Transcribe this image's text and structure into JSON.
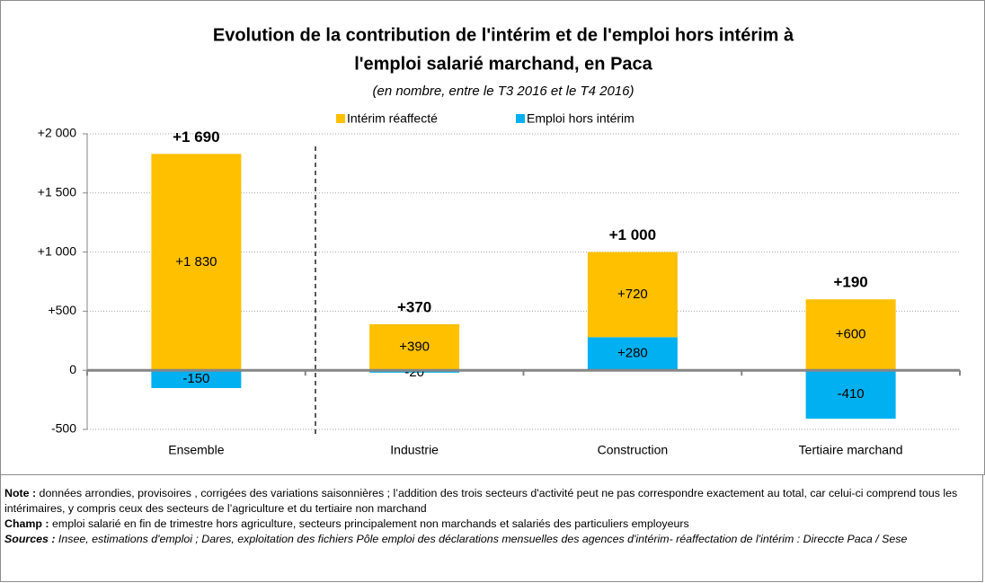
{
  "chart_data": {
    "type": "stacked_bar",
    "title": [
      "Evolution de la contribution de l'intérim et de l'emploi hors intérim à",
      "l'emploi salarié marchand, en Paca"
    ],
    "subtitle": "(en nombre, entre le T3 2016 et le T4 2016)",
    "categories": [
      "Ensemble",
      "Industrie",
      "Construction",
      "Tertiaire marchand"
    ],
    "series": [
      {
        "name": "Intérim réaffecté",
        "color": "#ffc000",
        "values": [
          1830,
          390,
          720,
          600
        ],
        "value_labels": [
          "+1 830",
          "+390",
          "+720",
          "+600"
        ]
      },
      {
        "name": "Emploi hors intérim",
        "color": "#00b0f0",
        "values": [
          -150,
          -20,
          280,
          -410
        ],
        "value_labels": [
          "-150",
          "-20",
          "+280",
          "-410"
        ]
      }
    ],
    "totals": {
      "values": [
        1690,
        370,
        1000,
        190
      ],
      "value_labels": [
        "+1 690",
        "+370",
        "+1 000",
        "+190"
      ]
    },
    "ylim": [
      -500,
      2000
    ],
    "yticks": [
      -500,
      0,
      {
        "value": 500,
        "label": "+500"
      },
      {
        "value": 1000,
        "label": "+1 000"
      },
      {
        "value": 1500,
        "label": "+1 500"
      },
      {
        "value": 2000,
        "label": "+2 000"
      }
    ],
    "grid": true,
    "legend": "top"
  },
  "notes": [
    {
      "label": "Note :",
      "text": " données  arrondies, provisoires , corrigées des variations saisonnières ; l’addition des  trois secteurs d'activité peut ne pas correspondre exactement au total, car celui-ci comprend tous les intérimaires, y compris ceux des secteurs de l’agriculture et du tertiaire non marchand"
    },
    {
      "label": "Champ :",
      "text": " emploi salarié en fin de trimestre hors agriculture, secteurs principalement non marchands et salariés des particuliers employeurs"
    },
    {
      "label": "Sources :",
      "text": " Insee, estimations d'emploi ; Dares, exploitation des fichiers Pôle emploi des déclarations mensuelles des agences d'intérim- réaffectation de l'intérim : Direccte Paca / Sese"
    }
  ]
}
